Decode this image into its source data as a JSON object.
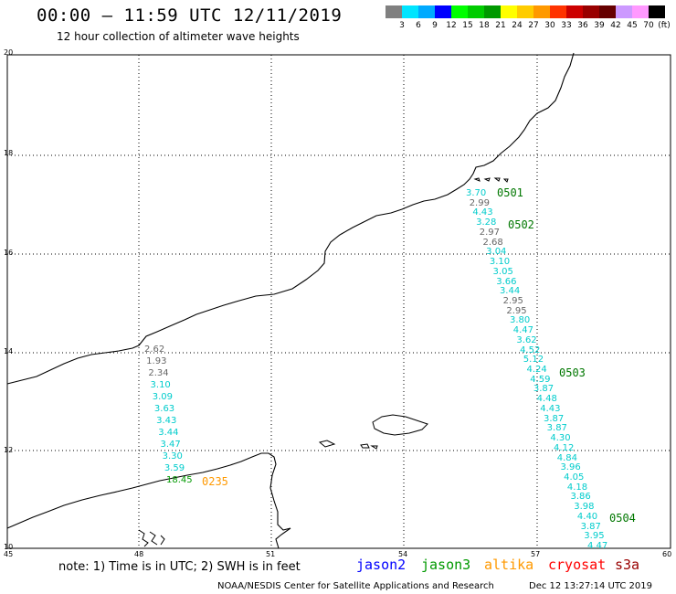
{
  "header": {
    "title": "00:00 – 11:59 UTC 12/11/2019",
    "subtitle": "12 hour collection of altimeter wave heights"
  },
  "colorbar": {
    "colors": [
      "#808080",
      "#00e5ff",
      "#00aaff",
      "#0000ff",
      "#00ff00",
      "#00cc00",
      "#009900",
      "#ffff00",
      "#ffcc00",
      "#ff9900",
      "#ff3300",
      "#cc0000",
      "#990000",
      "#660000",
      "#cc99ff",
      "#ff99ff",
      "#000000"
    ],
    "labels": [
      "3",
      "6",
      "9",
      "12",
      "15",
      "18",
      "21",
      "24",
      "27",
      "30",
      "33",
      "36",
      "39",
      "42",
      "45",
      "70"
    ],
    "unit": "(ft)"
  },
  "axes": {
    "x_ticks": [
      "45",
      "48",
      "51",
      "54",
      "57",
      "60"
    ],
    "y_ticks": [
      "20",
      "18",
      "16",
      "14",
      "12",
      "10"
    ],
    "lon_range": [
      45,
      60
    ],
    "lat_range": [
      10,
      20
    ]
  },
  "passes": [
    {
      "label": "0501",
      "color": "#007700"
    },
    {
      "label": "0502",
      "color": "#007700"
    },
    {
      "label": "0503",
      "color": "#007700"
    },
    {
      "label": "0504",
      "color": "#007700"
    },
    {
      "label": "0235",
      "color": "#ff9900"
    }
  ],
  "swh_east": [
    {
      "v": "3.70",
      "c": "#00cccc"
    },
    {
      "v": "2.99",
      "c": "#666666"
    },
    {
      "v": "4.43",
      "c": "#00cccc"
    },
    {
      "v": "3.28",
      "c": "#00cccc"
    },
    {
      "v": "2.97",
      "c": "#666666"
    },
    {
      "v": "2.68",
      "c": "#666666"
    },
    {
      "v": "3.04",
      "c": "#00cccc"
    },
    {
      "v": "3.10",
      "c": "#00cccc"
    },
    {
      "v": "3.05",
      "c": "#00cccc"
    },
    {
      "v": "3.66",
      "c": "#00cccc"
    },
    {
      "v": "3.44",
      "c": "#00cccc"
    },
    {
      "v": "2.95",
      "c": "#666666"
    },
    {
      "v": "2.95",
      "c": "#666666"
    },
    {
      "v": "3.80",
      "c": "#00cccc"
    },
    {
      "v": "4.47",
      "c": "#00cccc"
    },
    {
      "v": "3.62",
      "c": "#00cccc"
    },
    {
      "v": "4.52",
      "c": "#00cccc"
    },
    {
      "v": "5.12",
      "c": "#00cccc"
    },
    {
      "v": "4.24",
      "c": "#00cccc"
    },
    {
      "v": "4.59",
      "c": "#00cccc"
    },
    {
      "v": "3.87",
      "c": "#00cccc"
    },
    {
      "v": "4.48",
      "c": "#00cccc"
    },
    {
      "v": "4.43",
      "c": "#00cccc"
    },
    {
      "v": "3.87",
      "c": "#00cccc"
    },
    {
      "v": "3.87",
      "c": "#00cccc"
    },
    {
      "v": "4.30",
      "c": "#00cccc"
    },
    {
      "v": "4.12",
      "c": "#00cccc"
    },
    {
      "v": "4.84",
      "c": "#00cccc"
    },
    {
      "v": "3.96",
      "c": "#00cccc"
    },
    {
      "v": "4.05",
      "c": "#00cccc"
    },
    {
      "v": "4.18",
      "c": "#00cccc"
    },
    {
      "v": "3.86",
      "c": "#00cccc"
    },
    {
      "v": "3.98",
      "c": "#00cccc"
    },
    {
      "v": "4.40",
      "c": "#00cccc"
    },
    {
      "v": "3.87",
      "c": "#00cccc"
    },
    {
      "v": "3.95",
      "c": "#00cccc"
    },
    {
      "v": "4.47",
      "c": "#00cccc"
    }
  ],
  "swh_west": [
    {
      "v": "2.62",
      "c": "#666666"
    },
    {
      "v": "1.93",
      "c": "#666666"
    },
    {
      "v": "2.34",
      "c": "#666666"
    },
    {
      "v": "3.10",
      "c": "#00cccc"
    },
    {
      "v": "3.09",
      "c": "#00cccc"
    },
    {
      "v": "3.63",
      "c": "#00cccc"
    },
    {
      "v": "3.43",
      "c": "#00cccc"
    },
    {
      "v": "3.44",
      "c": "#00cccc"
    },
    {
      "v": "3.47",
      "c": "#00cccc"
    },
    {
      "v": "3.30",
      "c": "#00cccc"
    },
    {
      "v": "3.59",
      "c": "#00cccc"
    },
    {
      "v": "18.45",
      "c": "#009900"
    }
  ],
  "footer": {
    "note": "note: 1) Time is in UTC; 2) SWH is in feet",
    "satellites": [
      {
        "name": "jason2",
        "color": "#0000ff"
      },
      {
        "name": "jason3",
        "color": "#009900"
      },
      {
        "name": "altika",
        "color": "#ff9900"
      },
      {
        "name": "cryosat",
        "color": "#ff0000"
      },
      {
        "name": "s3a",
        "color": "#990000"
      }
    ],
    "credit": "NOAA/NESDIS Center for Satellite Applications and Research",
    "timestamp": "Dec 12 13:27:14 UTC 2019"
  }
}
